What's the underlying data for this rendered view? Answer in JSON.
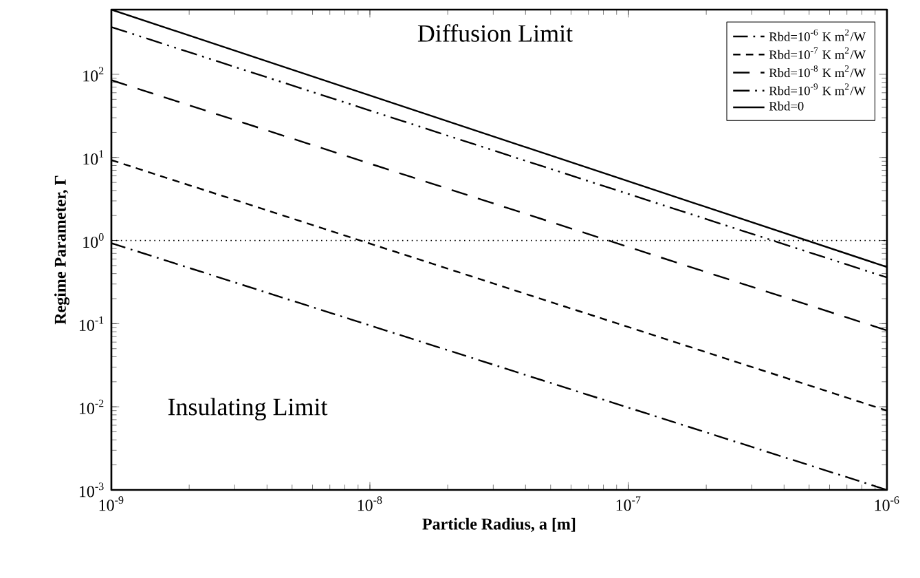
{
  "chart_data": {
    "type": "line",
    "xlabel": "Particle Radius, a [m]",
    "ylabel": "Regime Parameter, Γ",
    "log": "xy",
    "grid": false,
    "legend": "top right",
    "xlim": [
      1e-09,
      1e-06
    ],
    "ylim": [
      0.001,
      600
    ],
    "xticks": [
      {
        "value": 1e-09,
        "label": "10$^{-9}$"
      },
      {
        "value": 1e-08,
        "label": "10$^{-8}$"
      },
      {
        "value": 1e-07,
        "label": "10$^{-7}$"
      },
      {
        "value": 1e-06,
        "label": "10$^{-6}$"
      }
    ],
    "yticks": [
      {
        "value": 0.001,
        "label": "10$^{-3}$"
      },
      {
        "value": 0.01,
        "label": "10$^{-2}$"
      },
      {
        "value": 0.1,
        "label": "10$^{-1}$"
      },
      {
        "value": 1,
        "label": "10$^{0}$"
      },
      {
        "value": 10,
        "label": "10$^{1}$"
      },
      {
        "value": 100,
        "label": "10$^{2}$"
      }
    ],
    "x": [
      1e-09,
      1e-06
    ],
    "series": [
      {
        "name": "Rbd=10$^{-6}$ K m$^{2}$/W",
        "color": "#000000",
        "line_style": "dashdot",
        "values": [
          0.93,
          0.001
        ]
      },
      {
        "name": "Rbd=10$^{-7}$ K m$^{2}$/W",
        "color": "#000000",
        "line_style": "dashed",
        "values": [
          9.3,
          0.009
        ]
      },
      {
        "name": "Rbd=10$^{-8}$ K m$^{2}$/W",
        "color": "#000000",
        "line_style": "longdashed",
        "values": [
          85,
          0.083
        ]
      },
      {
        "name": "Rbd=10$^{-9}$ K m$^{2}$/W",
        "color": "#000000",
        "line_style": "dashdotdot",
        "values": [
          370,
          0.36
        ]
      },
      {
        "name": "Rbd=0",
        "color": "#000000",
        "line_style": "solid",
        "values": [
          600,
          0.48
        ]
      }
    ],
    "ref_lines": [
      {
        "axis": "y",
        "value": 1,
        "color": "#000000",
        "line_style": "dotted"
      }
    ],
    "annotations": [
      "Diffusion Limit",
      "Insulating Limit"
    ]
  }
}
